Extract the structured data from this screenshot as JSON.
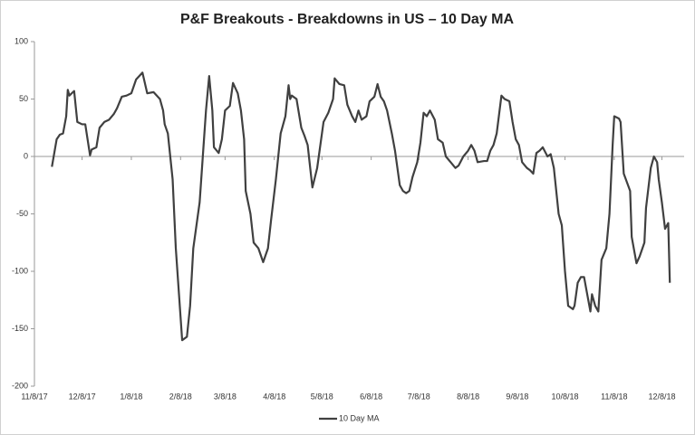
{
  "chart_data": {
    "type": "line",
    "title": "P&F Breakouts - Breakdowns in US – 10 Day MA",
    "x": [
      "11/19/17",
      "11/22/17",
      "11/24/17",
      "11/26/17",
      "11/28/17",
      "11/29/17",
      "11/30/17",
      "12/3/17",
      "12/5/17",
      "12/8/17",
      "12/10/17",
      "12/13/17",
      "12/14/17",
      "12/17/17",
      "12/19/17",
      "12/22/17",
      "12/25/17",
      "12/28/17",
      "12/30/17",
      "1/2/18",
      "1/5/18",
      "1/8/18",
      "1/11/18",
      "1/15/18",
      "1/18/18",
      "1/22/18",
      "1/26/18",
      "1/28/18",
      "1/29/18",
      "1/31/18",
      "2/3/18",
      "2/5/18",
      "2/7/18",
      "2/9/18",
      "2/12/18",
      "2/14/18",
      "2/16/18",
      "2/20/18",
      "2/22/18",
      "2/24/18",
      "2/26/18",
      "2/28/18",
      "3/1/18",
      "3/4/18",
      "3/6/18",
      "3/8/18",
      "3/11/18",
      "3/13/18",
      "3/16/18",
      "3/18/18",
      "3/20/18",
      "3/21/18",
      "3/24/18",
      "3/26/18",
      "3/29/18",
      "4/1/18",
      "4/4/18",
      "4/6/18",
      "4/9/18",
      "4/12/18",
      "4/15/18",
      "4/17/18",
      "4/18/18",
      "4/19/18",
      "4/22/18",
      "4/25/18",
      "4/27/18",
      "4/29/18",
      "5/1/18",
      "5/2/18",
      "5/5/18",
      "5/9/18",
      "5/12/18",
      "5/15/18",
      "5/16/18",
      "5/19/18",
      "5/22/18",
      "5/24/18",
      "5/27/18",
      "5/29/18",
      "5/31/18",
      "6/2/18",
      "6/5/18",
      "6/7/18",
      "6/10/18",
      "6/12/18",
      "6/14/18",
      "6/16/18",
      "6/18/18",
      "6/21/18",
      "6/23/18",
      "6/26/18",
      "6/28/18",
      "6/30/18",
      "7/2/18",
      "7/4/18",
      "7/7/18",
      "7/9/18",
      "7/11/18",
      "7/13/18",
      "7/15/18",
      "7/18/18",
      "7/20/18",
      "7/23/18",
      "7/25/18",
      "7/28/18",
      "7/31/18",
      "8/2/18",
      "8/5/18",
      "8/8/18",
      "8/10/18",
      "8/12/18",
      "8/14/18",
      "8/18/18",
      "8/20/18",
      "8/22/18",
      "8/24/18",
      "8/26/18",
      "8/29/18",
      "8/31/18",
      "9/3/18",
      "9/5/18",
      "9/7/18",
      "9/9/18",
      "9/11/18",
      "9/14/18",
      "9/16/18",
      "9/18/18",
      "9/20/18",
      "9/22/18",
      "9/24/18",
      "9/27/18",
      "9/29/18",
      "10/1/18",
      "10/4/18",
      "10/6/18",
      "10/8/18",
      "10/10/18",
      "10/13/18",
      "10/14/18",
      "10/16/18",
      "10/18/18",
      "10/20/18",
      "10/22/18",
      "10/24/18",
      "10/25/18",
      "10/27/18",
      "10/29/18",
      "10/31/18",
      "11/3/18",
      "11/5/18",
      "11/7/18",
      "11/8/18",
      "11/11/18",
      "11/12/18",
      "11/14/18",
      "11/18/18",
      "11/19/18",
      "11/22/18",
      "11/24/18",
      "11/27/18",
      "11/28/18",
      "12/1/18",
      "12/3/18",
      "12/5/18",
      "12/6/18",
      "12/8/18",
      "12/10/18",
      "12/12/18",
      "12/13/18"
    ],
    "series": [
      {
        "name": "10 Day MA",
        "color": "#404040",
        "values": [
          -9,
          15,
          19,
          20,
          35,
          58,
          53,
          57,
          30,
          28,
          28,
          1,
          6,
          8,
          25,
          30,
          32,
          37,
          42,
          52,
          53,
          55,
          67,
          73,
          55,
          56,
          50,
          40,
          28,
          20,
          -20,
          -80,
          -120,
          -160,
          -157,
          -130,
          -80,
          -40,
          0,
          40,
          70,
          40,
          8,
          3,
          15,
          40,
          44,
          64,
          55,
          40,
          15,
          -30,
          -50,
          -75,
          -80,
          -92,
          -80,
          -55,
          -20,
          20,
          35,
          62,
          50,
          53,
          50,
          25,
          18,
          10,
          -15,
          -27,
          -10,
          30,
          38,
          50,
          68,
          63,
          62,
          45,
          35,
          30,
          40,
          32,
          35,
          48,
          52,
          63,
          52,
          48,
          40,
          20,
          5,
          -25,
          -30,
          -32,
          -30,
          -18,
          -5,
          12,
          38,
          35,
          40,
          32,
          15,
          12,
          0,
          -5,
          -10,
          -8,
          0,
          5,
          10,
          5,
          -5,
          -4,
          -4,
          5,
          10,
          20,
          53,
          50,
          48,
          30,
          15,
          10,
          -5,
          -10,
          -12,
          -15,
          3,
          5,
          8,
          0,
          2,
          -10,
          -50,
          -60,
          -100,
          -130,
          -133,
          -130,
          -110,
          -105,
          -105,
          -120,
          -135,
          -120,
          -130,
          -135,
          -90,
          -80,
          -50,
          10,
          35,
          33,
          30,
          -15,
          -30,
          -70,
          -93,
          -87,
          -75,
          -45,
          -10,
          0,
          -5,
          -20,
          -40,
          -63,
          -58,
          -110
        ]
      }
    ],
    "xlim": [
      "11/8/17",
      "12/22/18"
    ],
    "xticks": [
      "11/8/17",
      "12/8/17",
      "1/8/18",
      "2/8/18",
      "3/8/18",
      "4/8/18",
      "5/8/18",
      "6/8/18",
      "7/8/18",
      "8/8/18",
      "9/8/18",
      "10/8/18",
      "11/8/18",
      "12/8/18"
    ],
    "ylim": [
      -200,
      100
    ],
    "yticks": [
      100,
      50,
      0,
      -50,
      -100,
      -150,
      -200
    ],
    "legend": "bottom"
  }
}
